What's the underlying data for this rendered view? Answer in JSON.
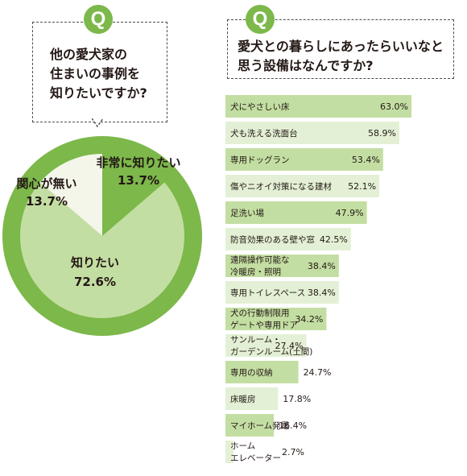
{
  "q1": {
    "icon": "Q",
    "question_lines": [
      "他の愛犬家の",
      "住まいの事例を",
      "知りたいですか?"
    ]
  },
  "q2": {
    "icon": "Q",
    "question_lines": [
      "愛犬との暮らしにあったらいいなと",
      "思う設備はなんですか?"
    ]
  },
  "chart_data": [
    {
      "type": "pie",
      "slices": [
        {
          "label": "非常に知りたい",
          "value": 13.7,
          "value_label": "13.7%",
          "color": "#7cb84a"
        },
        {
          "label": "知りたい",
          "value": 72.6,
          "value_label": "72.6%",
          "color": "#c3dea2"
        },
        {
          "label": "関心が無い",
          "value": 13.7,
          "value_label": "13.7%",
          "color": "#f4f6ea"
        }
      ]
    },
    {
      "type": "bar",
      "orientation": "horizontal",
      "xlim": [
        0,
        63
      ],
      "colors": {
        "dark": "#c3dea2",
        "light": "#e3f0d5"
      },
      "categories": [
        [
          "犬にやさしい床"
        ],
        [
          "犬も洗える洗面台"
        ],
        [
          "専用ドッグラン"
        ],
        [
          "傷やニオイ対策になる建材"
        ],
        [
          "足洗い場"
        ],
        [
          "防音効果のある壁や窓"
        ],
        [
          "遠隔操作可能な",
          "冷暖房・照明"
        ],
        [
          "専用トイレスペース"
        ],
        [
          "犬の行動制限用",
          "ゲートや専用ドア"
        ],
        [
          "サンルーム・",
          "ガーデンルーム(土間)"
        ],
        [
          "専用の収納"
        ],
        [
          "床暖房"
        ],
        [
          "マイホーム発電"
        ],
        [
          "ホーム",
          "エレベーター"
        ]
      ],
      "values": [
        63.0,
        58.9,
        53.4,
        52.1,
        47.9,
        42.5,
        38.4,
        38.4,
        34.2,
        27.4,
        24.7,
        17.8,
        16.4,
        2.7
      ],
      "value_labels": [
        "63.0%",
        "58.9%",
        "53.4%",
        "52.1%",
        "47.9%",
        "42.5%",
        "38.4%",
        "38.4%",
        "34.2%",
        "27.4%",
        "24.7%",
        "17.8%",
        "16.4%",
        "2.7%"
      ]
    }
  ]
}
